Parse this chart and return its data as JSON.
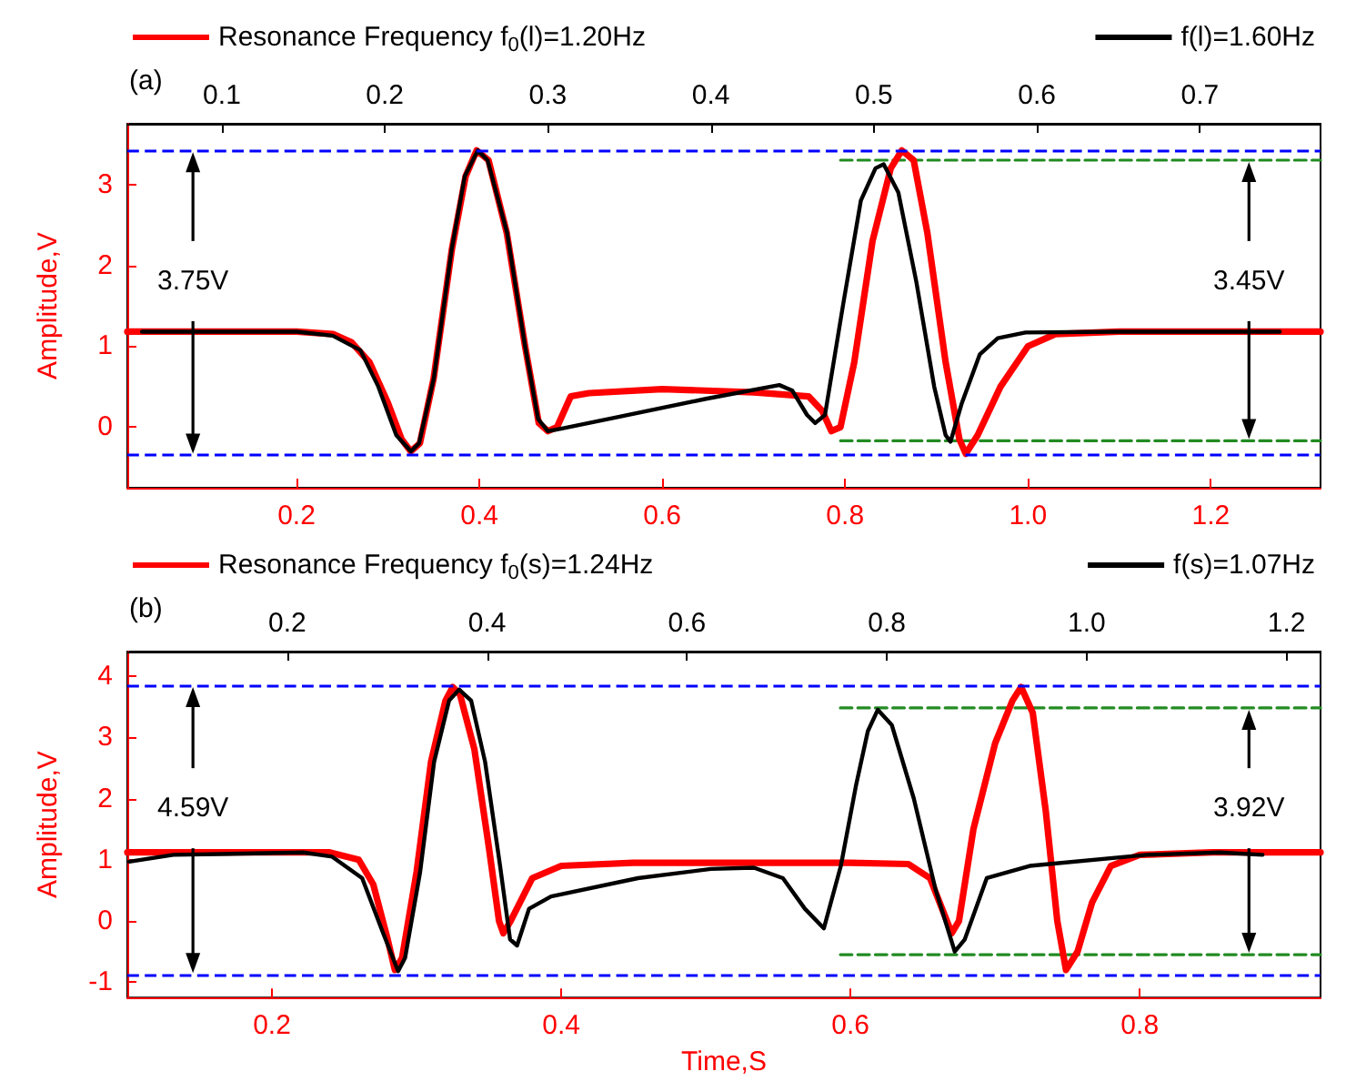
{
  "chart_data": [
    {
      "type": "line",
      "title": "(a)",
      "ylabel": "Amplitude,V",
      "legend": "top",
      "marker": "none",
      "grid": false,
      "xlim": [
        0.015,
        1.32
      ],
      "xticks": [
        0.2,
        0.4,
        0.6,
        0.8,
        {
          "value": 1,
          "label": "1.0"
        },
        1.2
      ],
      "x2lim": [
        0.042,
        0.774
      ],
      "x2ticks": [
        0.1,
        0.2,
        0.3,
        0.4,
        0.5,
        0.6,
        0.7
      ],
      "ylim": [
        -0.75,
        3.75
      ],
      "yticks": [
        0,
        1,
        2,
        3
      ],
      "series": [
        {
          "name": "Resonance Frequency f$_{0}$(l)=1.20Hz",
          "color": "#ff0000",
          "x": [
            0.015,
            0.2,
            0.24,
            0.26,
            0.28,
            0.3,
            0.315,
            0.325,
            0.335,
            0.35,
            0.37,
            0.385,
            0.397,
            0.41,
            0.43,
            0.45,
            0.465,
            0.475,
            0.485,
            0.5,
            0.52,
            0.6,
            0.7,
            0.76,
            0.775,
            0.785,
            0.795,
            0.81,
            0.83,
            0.85,
            0.862,
            0.875,
            0.89,
            0.91,
            0.925,
            0.932,
            0.945,
            0.97,
            1.0,
            1.03,
            1.1,
            1.32
          ],
          "values": [
            1.18,
            1.18,
            1.15,
            1.05,
            0.8,
            0.3,
            -0.15,
            -0.3,
            -0.2,
            0.6,
            2.2,
            3.1,
            3.42,
            3.3,
            2.4,
            1.0,
            0.05,
            -0.05,
            0.0,
            0.38,
            0.42,
            0.47,
            0.43,
            0.38,
            0.2,
            -0.05,
            0.0,
            0.8,
            2.3,
            3.2,
            3.42,
            3.3,
            2.4,
            0.8,
            -0.15,
            -0.33,
            -0.1,
            0.5,
            1.0,
            1.15,
            1.18,
            1.18
          ]
        },
        {
          "name": "f(l)=1.60Hz",
          "color": "#000000",
          "axis": "x2",
          "x": [
            0.051,
            0.146,
            0.168,
            0.185,
            0.196,
            0.207,
            0.216,
            0.221,
            0.23,
            0.241,
            0.249,
            0.257,
            0.263,
            0.275,
            0.286,
            0.294,
            0.3,
            0.308,
            0.342,
            0.397,
            0.442,
            0.45,
            0.459,
            0.464,
            0.47,
            0.481,
            0.492,
            0.501,
            0.506,
            0.515,
            0.526,
            0.537,
            0.544,
            0.547,
            0.554,
            0.565,
            0.576,
            0.593,
            0.649,
            0.749
          ],
          "values": [
            1.18,
            1.18,
            1.13,
            0.95,
            0.5,
            -0.1,
            -0.3,
            -0.2,
            0.6,
            2.2,
            3.1,
            3.42,
            3.3,
            2.4,
            1.0,
            0.1,
            -0.05,
            -0.02,
            0.12,
            0.35,
            0.52,
            0.45,
            0.15,
            0.05,
            0.15,
            1.5,
            2.8,
            3.2,
            3.25,
            2.9,
            1.8,
            0.5,
            -0.1,
            -0.18,
            0.3,
            0.9,
            1.1,
            1.17,
            1.18,
            1.18
          ]
        },
        {
          "color": "#228b22",
          "line_style": "dashed",
          "x": [
            0.795,
            1.32
          ],
          "values": [
            3.3,
            3.3
          ]
        },
        {
          "color": "#228b22",
          "line_style": "dashed",
          "x": [
            0.795,
            1.32
          ],
          "values": [
            -0.17,
            -0.17
          ]
        }
      ],
      "ref_lines": [
        {
          "axis": "y",
          "value": 3.42,
          "color": "#0000ff",
          "line_style": "dashed"
        },
        {
          "axis": "y",
          "value": -0.35,
          "color": "#0000ff",
          "line_style": "dashed"
        }
      ],
      "annotations": [
        "3.75V",
        "3.45V"
      ]
    },
    {
      "type": "line",
      "title": "(b)",
      "ylabel": "Amplitude,V",
      "xlabel": "Time,S",
      "legend": "top",
      "marker": "none",
      "grid": false,
      "xlim": [
        0.1,
        0.925
      ],
      "xticks": [
        0.2,
        0.4,
        0.6,
        0.8
      ],
      "x2lim": [
        0.04,
        1.234
      ],
      "x2ticks": [
        0.2,
        0.4,
        0.6,
        0.8,
        {
          "value": 1,
          "label": "1.0"
        },
        1.2
      ],
      "ylim": [
        -1.25,
        4.4
      ],
      "yticks": [
        -1,
        0,
        1,
        2,
        3,
        4
      ],
      "series": [
        {
          "name": "Resonance Frequency f$_{0}$(s)=1.24Hz",
          "color": "#ff0000",
          "x": [
            0.1,
            0.24,
            0.26,
            0.27,
            0.28,
            0.285,
            0.29,
            0.3,
            0.31,
            0.32,
            0.325,
            0.33,
            0.34,
            0.35,
            0.357,
            0.36,
            0.365,
            0.38,
            0.4,
            0.45,
            0.6,
            0.64,
            0.655,
            0.665,
            0.67,
            0.675,
            0.685,
            0.7,
            0.712,
            0.718,
            0.726,
            0.735,
            0.743,
            0.749,
            0.757,
            0.767,
            0.78,
            0.8,
            0.85,
            0.925
          ],
          "values": [
            1.12,
            1.12,
            1.0,
            0.6,
            -0.3,
            -0.8,
            -0.6,
            0.8,
            2.6,
            3.6,
            3.82,
            3.7,
            2.8,
            1.2,
            0.0,
            -0.2,
            0.0,
            0.7,
            0.9,
            0.95,
            0.95,
            0.93,
            0.7,
            0.1,
            -0.2,
            0.0,
            1.5,
            2.9,
            3.6,
            3.82,
            3.4,
            1.8,
            0.0,
            -0.8,
            -0.5,
            0.3,
            0.9,
            1.08,
            1.12,
            1.12
          ]
        },
        {
          "name": "f(s)=1.07Hz",
          "color": "#000000",
          "axis": "x2",
          "x": [
            0.042,
            0.086,
            0.216,
            0.245,
            0.275,
            0.296,
            0.311,
            0.318,
            0.333,
            0.347,
            0.362,
            0.372,
            0.384,
            0.398,
            0.413,
            0.423,
            0.43,
            0.442,
            0.464,
            0.551,
            0.624,
            0.667,
            0.696,
            0.718,
            0.737,
            0.754,
            0.769,
            0.781,
            0.791,
            0.805,
            0.827,
            0.849,
            0.868,
            0.878,
            0.9,
            0.943,
            1.06,
            1.133,
            1.176
          ],
          "values": [
            0.97,
            1.08,
            1.12,
            1.05,
            0.7,
            -0.2,
            -0.82,
            -0.6,
            0.8,
            2.6,
            3.6,
            3.78,
            3.6,
            2.6,
            0.9,
            -0.3,
            -0.4,
            0.2,
            0.4,
            0.7,
            0.85,
            0.87,
            0.7,
            0.2,
            -0.12,
            0.9,
            2.2,
            3.1,
            3.45,
            3.2,
            2.0,
            0.5,
            -0.5,
            -0.3,
            0.7,
            0.9,
            1.08,
            1.12,
            1.08
          ]
        },
        {
          "color": "#228b22",
          "line_style": "dashed",
          "x": [
            0.593,
            0.925
          ],
          "values": [
            3.48,
            3.48
          ]
        },
        {
          "color": "#228b22",
          "line_style": "dashed",
          "x": [
            0.593,
            0.925
          ],
          "values": [
            -0.55,
            -0.55
          ]
        }
      ],
      "ref_lines": [
        {
          "axis": "y",
          "value": 3.85,
          "color": "#0000ff",
          "line_style": "dashed"
        },
        {
          "axis": "y",
          "value": -0.88,
          "color": "#0000ff",
          "line_style": "dashed"
        }
      ],
      "annotations": [
        "4.59V",
        "3.92V"
      ]
    }
  ]
}
